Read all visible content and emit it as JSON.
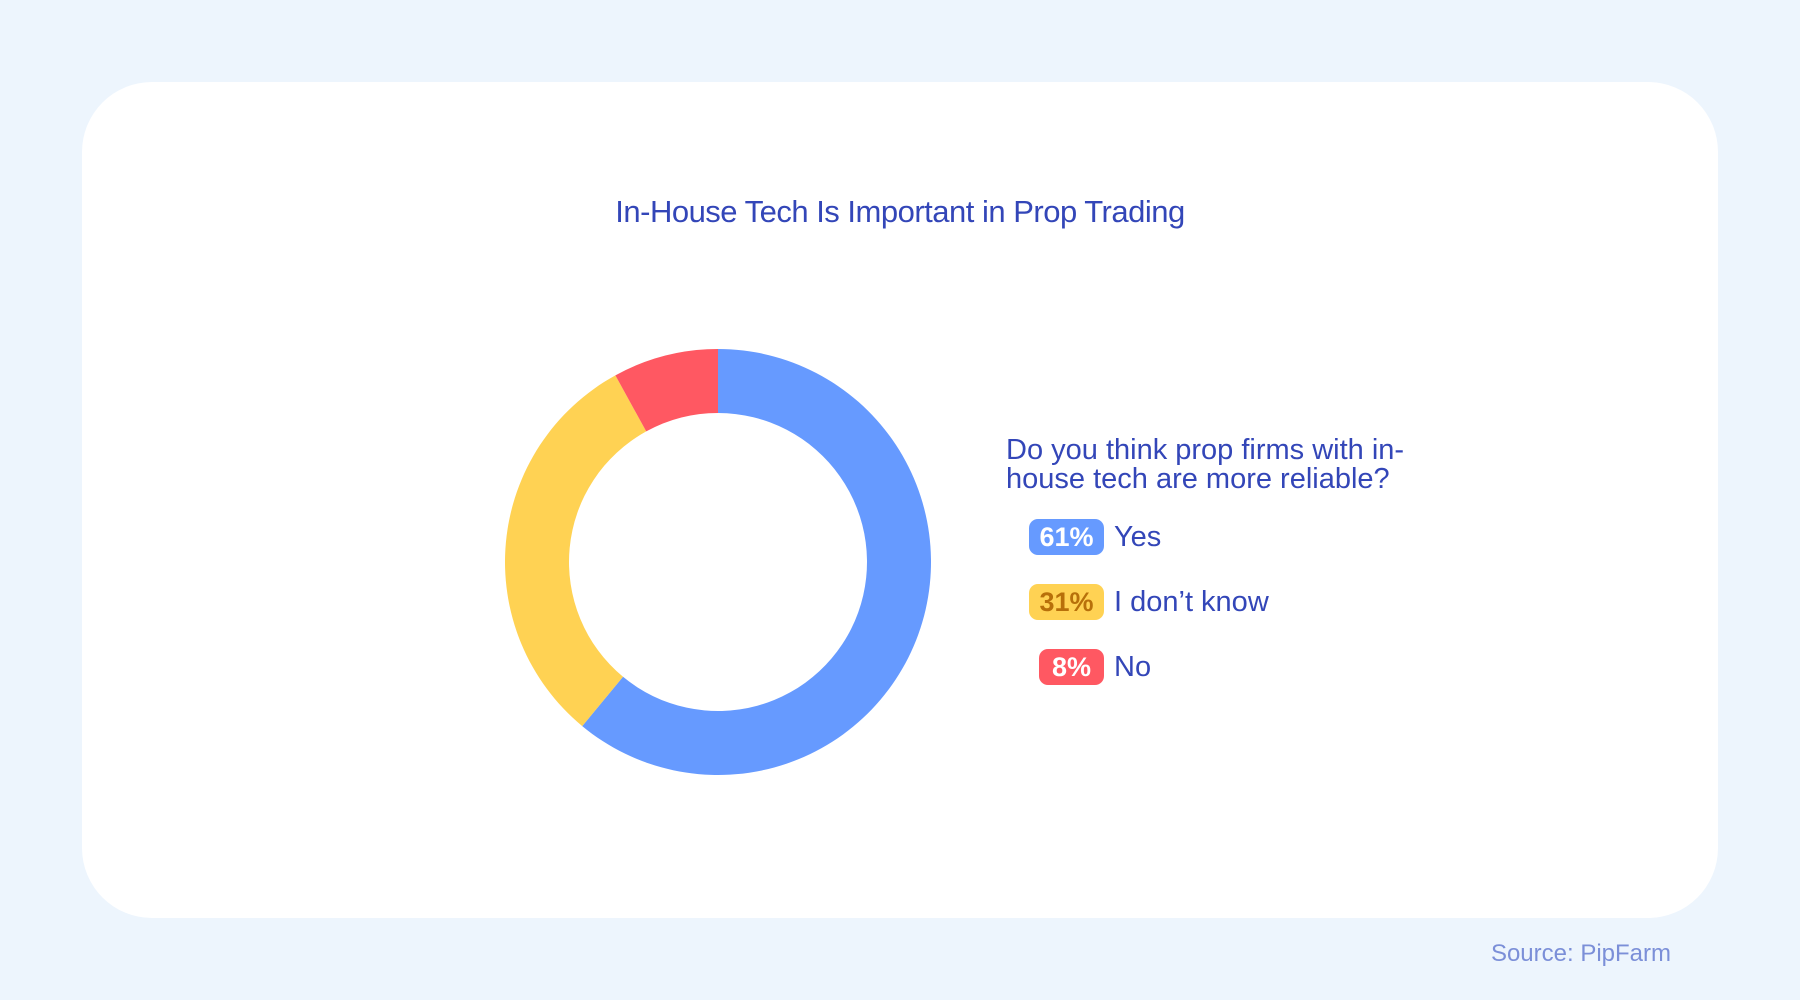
{
  "chart_data": {
    "type": "pie",
    "donut": true,
    "title": "In-House Tech Is Important in Prop Trading",
    "question": "Do you think prop firms with in-house tech are more reliable?",
    "slices": [
      {
        "label": "Yes",
        "value": 61,
        "value_label": "61%",
        "color": "#669aff",
        "badge_text_color": "#ffffff"
      },
      {
        "label": "I don’t know",
        "value": 31,
        "value_label": "31%",
        "color": "#ffd253",
        "badge_text_color": "#b8700a"
      },
      {
        "label": "No",
        "value": 8,
        "value_label": "8%",
        "color": "#ff5862",
        "badge_text_color": "#ffffff"
      }
    ],
    "legend_position": "right"
  },
  "source": "Source: PipFarm"
}
